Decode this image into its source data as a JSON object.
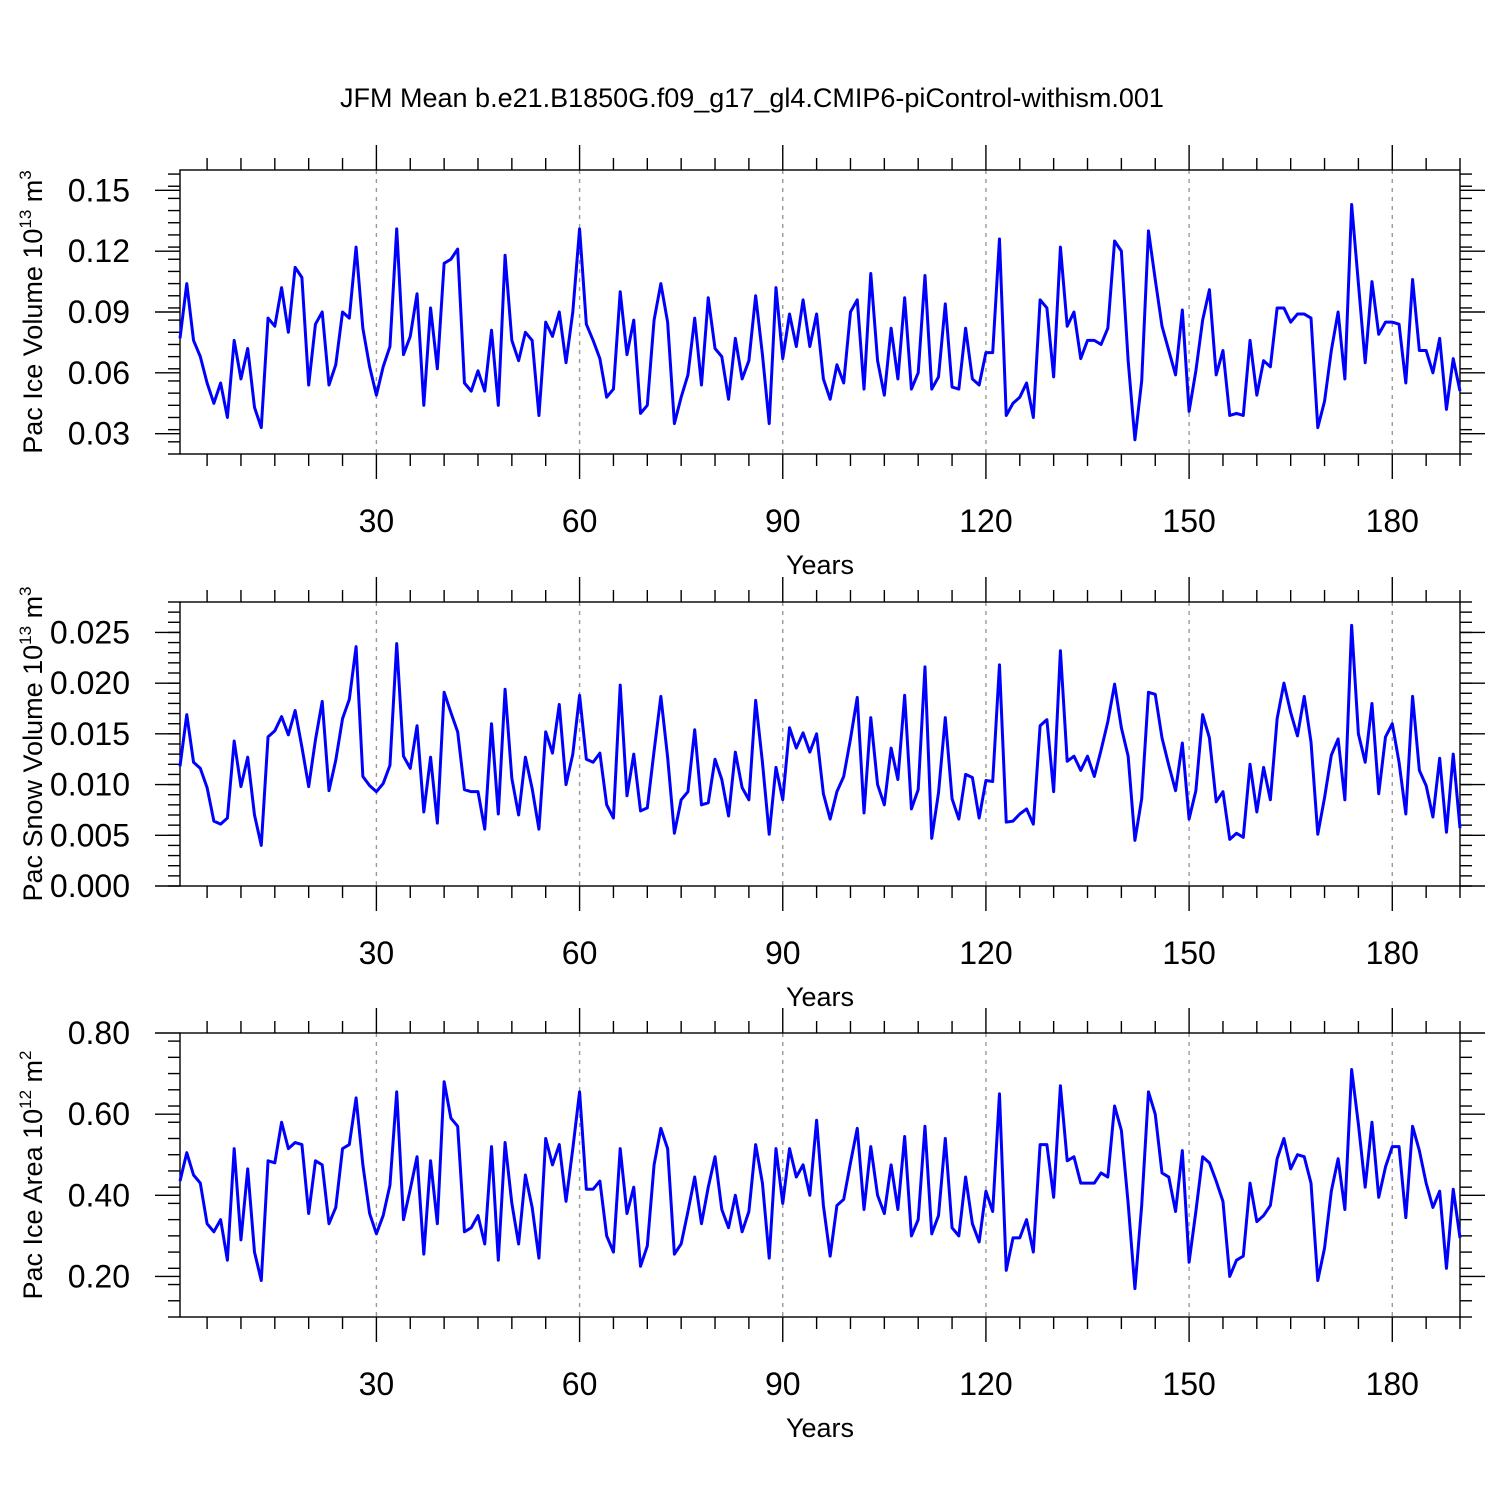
{
  "title": "JFM Mean b.e21.B1850G.f09_g17_gl4.CMIP6-piControl-withism.001",
  "line_color": "#0000ff",
  "chart_data": [
    {
      "type": "line",
      "ylabel": "Pac Ice Volume 10",
      "ylabel_sup": "13",
      "ylabel_unit": " m",
      "ylabel_unit_sup": "3",
      "xlabel": "Years",
      "xlim": [
        1,
        190
      ],
      "ylim": [
        0.02,
        0.16
      ],
      "yticks": [
        0.03,
        0.06,
        0.09,
        0.12,
        0.15
      ],
      "ytick_labels": [
        "0.03",
        "0.06",
        "0.09",
        "0.12",
        "0.15"
      ],
      "xticks": [
        30,
        60,
        90,
        120,
        150,
        180
      ],
      "xtick_labels": [
        "30",
        "60",
        "90",
        "120",
        "150",
        "180"
      ],
      "grid_x": true,
      "x_start": 1,
      "values": [
        0.077,
        0.104,
        0.076,
        0.068,
        0.055,
        0.045,
        0.055,
        0.038,
        0.076,
        0.057,
        0.072,
        0.043,
        0.033,
        0.087,
        0.083,
        0.102,
        0.08,
        0.112,
        0.107,
        0.054,
        0.084,
        0.09,
        0.054,
        0.064,
        0.09,
        0.087,
        0.122,
        0.082,
        0.063,
        0.049,
        0.063,
        0.073,
        0.131,
        0.069,
        0.078,
        0.099,
        0.044,
        0.092,
        0.062,
        0.114,
        0.116,
        0.121,
        0.055,
        0.051,
        0.061,
        0.051,
        0.081,
        0.044,
        0.118,
        0.076,
        0.066,
        0.08,
        0.076,
        0.039,
        0.085,
        0.078,
        0.09,
        0.065,
        0.09,
        0.131,
        0.084,
        0.076,
        0.067,
        0.048,
        0.052,
        0.1,
        0.069,
        0.086,
        0.04,
        0.044,
        0.086,
        0.104,
        0.085,
        0.035,
        0.048,
        0.059,
        0.087,
        0.054,
        0.097,
        0.072,
        0.068,
        0.047,
        0.077,
        0.057,
        0.066,
        0.098,
        0.069,
        0.035,
        0.102,
        0.067,
        0.089,
        0.073,
        0.096,
        0.073,
        0.089,
        0.057,
        0.047,
        0.064,
        0.055,
        0.09,
        0.096,
        0.052,
        0.109,
        0.066,
        0.049,
        0.082,
        0.057,
        0.097,
        0.052,
        0.06,
        0.108,
        0.052,
        0.058,
        0.094,
        0.053,
        0.052,
        0.082,
        0.057,
        0.054,
        0.07,
        0.07,
        0.126,
        0.039,
        0.045,
        0.048,
        0.055,
        0.038,
        0.096,
        0.092,
        0.058,
        0.122,
        0.083,
        0.09,
        0.067,
        0.076,
        0.076,
        0.074,
        0.082,
        0.125,
        0.12,
        0.066,
        0.027,
        0.056,
        0.13,
        0.106,
        0.083,
        0.071,
        0.059,
        0.091,
        0.041,
        0.061,
        0.086,
        0.101,
        0.059,
        0.071,
        0.039,
        0.04,
        0.039,
        0.076,
        0.049,
        0.066,
        0.063,
        0.092,
        0.092,
        0.085,
        0.089,
        0.089,
        0.087,
        0.033,
        0.046,
        0.071,
        0.09,
        0.057,
        0.143,
        0.104,
        0.065,
        0.105,
        0.079,
        0.085,
        0.085,
        0.084,
        0.055,
        0.106,
        0.071,
        0.071,
        0.06,
        0.077,
        0.042,
        0.067,
        0.051
      ]
    },
    {
      "type": "line",
      "ylabel": "Pac Snow Volume 10",
      "ylabel_sup": "13",
      "ylabel_unit": " m",
      "ylabel_unit_sup": "3",
      "xlabel": "Years",
      "xlim": [
        1,
        190
      ],
      "ylim": [
        0.0,
        0.028
      ],
      "yticks": [
        0.0,
        0.005,
        0.01,
        0.015,
        0.02,
        0.025
      ],
      "ytick_labels": [
        "0.000",
        "0.005",
        "0.010",
        "0.015",
        "0.020",
        "0.025"
      ],
      "xticks": [
        30,
        60,
        90,
        120,
        150,
        180
      ],
      "xtick_labels": [
        "30",
        "60",
        "90",
        "120",
        "150",
        "180"
      ],
      "grid_x": true,
      "x_start": 1,
      "values": [
        0.0118,
        0.0169,
        0.0122,
        0.0116,
        0.0097,
        0.0064,
        0.0061,
        0.0067,
        0.0143,
        0.0098,
        0.0127,
        0.007,
        0.004,
        0.0147,
        0.0153,
        0.0167,
        0.0149,
        0.0173,
        0.0137,
        0.0098,
        0.0144,
        0.0182,
        0.0094,
        0.0124,
        0.0165,
        0.0184,
        0.0236,
        0.0108,
        0.0099,
        0.0093,
        0.0101,
        0.0119,
        0.0239,
        0.0128,
        0.0116,
        0.0158,
        0.0073,
        0.0127,
        0.0062,
        0.0191,
        0.0171,
        0.0152,
        0.0095,
        0.0093,
        0.0093,
        0.0056,
        0.016,
        0.0071,
        0.0194,
        0.0106,
        0.007,
        0.0127,
        0.0096,
        0.0056,
        0.0152,
        0.0131,
        0.0179,
        0.01,
        0.013,
        0.0188,
        0.0125,
        0.0122,
        0.0131,
        0.008,
        0.0067,
        0.0198,
        0.0089,
        0.013,
        0.0074,
        0.0077,
        0.0133,
        0.0187,
        0.0127,
        0.0052,
        0.0085,
        0.0093,
        0.0154,
        0.008,
        0.0082,
        0.0125,
        0.0105,
        0.0069,
        0.0132,
        0.0097,
        0.0085,
        0.0183,
        0.0122,
        0.0051,
        0.0117,
        0.0085,
        0.0156,
        0.0136,
        0.0151,
        0.0132,
        0.015,
        0.0091,
        0.0066,
        0.0093,
        0.0108,
        0.0145,
        0.0186,
        0.0072,
        0.0166,
        0.01,
        0.008,
        0.0136,
        0.0105,
        0.0188,
        0.0076,
        0.0095,
        0.0216,
        0.0047,
        0.0092,
        0.0166,
        0.0086,
        0.0066,
        0.011,
        0.0107,
        0.0067,
        0.0104,
        0.0103,
        0.0218,
        0.0063,
        0.0064,
        0.0071,
        0.0076,
        0.0061,
        0.0158,
        0.0164,
        0.0093,
        0.0232,
        0.0123,
        0.0128,
        0.0114,
        0.0128,
        0.0108,
        0.0134,
        0.0162,
        0.0199,
        0.0156,
        0.0128,
        0.0045,
        0.0086,
        0.0191,
        0.0189,
        0.0146,
        0.0119,
        0.0094,
        0.0141,
        0.0066,
        0.0094,
        0.0169,
        0.0146,
        0.0083,
        0.0093,
        0.0046,
        0.0052,
        0.0048,
        0.012,
        0.0073,
        0.0117,
        0.0085,
        0.0165,
        0.02,
        0.0171,
        0.0148,
        0.0187,
        0.0142,
        0.0051,
        0.0087,
        0.0129,
        0.0145,
        0.0085,
        0.0257,
        0.015,
        0.0122,
        0.018,
        0.0091,
        0.0147,
        0.016,
        0.0122,
        0.0071,
        0.0187,
        0.0114,
        0.0099,
        0.0068,
        0.0126,
        0.0053,
        0.013,
        0.0057
      ]
    },
    {
      "type": "line",
      "ylabel": "Pac Ice Area 10",
      "ylabel_sup": "12",
      "ylabel_unit": " m",
      "ylabel_unit_sup": "2",
      "xlabel": "Years",
      "xlim": [
        1,
        190
      ],
      "ylim": [
        0.1,
        0.8
      ],
      "yticks": [
        0.2,
        0.4,
        0.6,
        0.8
      ],
      "ytick_labels": [
        "0.20",
        "0.40",
        "0.60",
        "0.80"
      ],
      "xticks": [
        30,
        60,
        90,
        120,
        150,
        180
      ],
      "xtick_labels": [
        "30",
        "60",
        "90",
        "120",
        "150",
        "180"
      ],
      "grid_x": true,
      "x_start": 1,
      "values": [
        0.435,
        0.505,
        0.45,
        0.43,
        0.33,
        0.31,
        0.34,
        0.24,
        0.515,
        0.29,
        0.465,
        0.26,
        0.19,
        0.485,
        0.48,
        0.58,
        0.515,
        0.53,
        0.525,
        0.355,
        0.485,
        0.475,
        0.33,
        0.37,
        0.515,
        0.525,
        0.64,
        0.475,
        0.355,
        0.305,
        0.35,
        0.425,
        0.655,
        0.34,
        0.415,
        0.495,
        0.255,
        0.485,
        0.33,
        0.68,
        0.59,
        0.57,
        0.31,
        0.32,
        0.35,
        0.28,
        0.52,
        0.24,
        0.53,
        0.38,
        0.28,
        0.45,
        0.37,
        0.245,
        0.54,
        0.475,
        0.525,
        0.385,
        0.515,
        0.655,
        0.415,
        0.415,
        0.435,
        0.3,
        0.26,
        0.515,
        0.355,
        0.42,
        0.225,
        0.275,
        0.475,
        0.565,
        0.515,
        0.255,
        0.28,
        0.36,
        0.445,
        0.33,
        0.42,
        0.495,
        0.365,
        0.32,
        0.4,
        0.31,
        0.36,
        0.525,
        0.43,
        0.245,
        0.515,
        0.38,
        0.515,
        0.445,
        0.475,
        0.4,
        0.585,
        0.375,
        0.25,
        0.375,
        0.39,
        0.48,
        0.565,
        0.365,
        0.52,
        0.4,
        0.355,
        0.475,
        0.365,
        0.545,
        0.3,
        0.34,
        0.57,
        0.305,
        0.35,
        0.54,
        0.32,
        0.3,
        0.445,
        0.33,
        0.285,
        0.41,
        0.36,
        0.65,
        0.215,
        0.295,
        0.295,
        0.34,
        0.26,
        0.525,
        0.525,
        0.395,
        0.67,
        0.485,
        0.495,
        0.43,
        0.43,
        0.43,
        0.455,
        0.445,
        0.62,
        0.56,
        0.38,
        0.17,
        0.375,
        0.655,
        0.6,
        0.455,
        0.445,
        0.36,
        0.51,
        0.235,
        0.36,
        0.495,
        0.48,
        0.435,
        0.385,
        0.2,
        0.24,
        0.25,
        0.43,
        0.335,
        0.35,
        0.375,
        0.49,
        0.54,
        0.465,
        0.5,
        0.495,
        0.43,
        0.19,
        0.27,
        0.41,
        0.49,
        0.365,
        0.71,
        0.575,
        0.42,
        0.58,
        0.395,
        0.47,
        0.52,
        0.52,
        0.345,
        0.57,
        0.51,
        0.43,
        0.37,
        0.41,
        0.22,
        0.415,
        0.295
      ]
    }
  ]
}
